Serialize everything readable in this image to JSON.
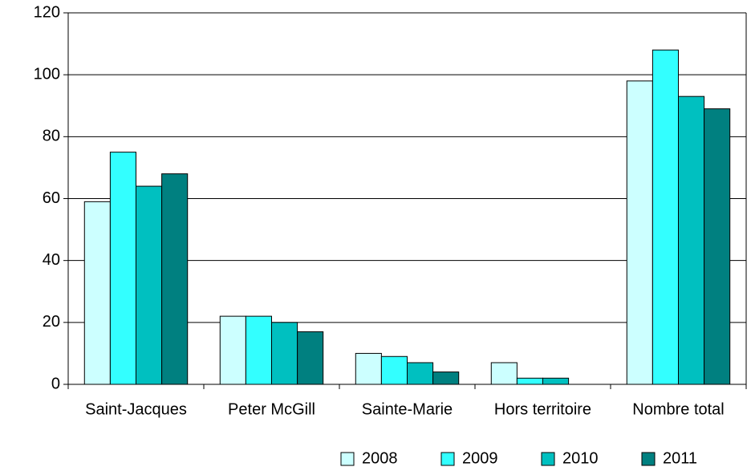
{
  "chart_data": {
    "type": "bar",
    "categories": [
      "Saint-Jacques",
      "Peter McGill",
      "Sainte-Marie",
      "Hors territoire",
      "Nombre total"
    ],
    "series": [
      {
        "name": "2008",
        "color": "#ccffff",
        "values": [
          59,
          22,
          10,
          7,
          98
        ]
      },
      {
        "name": "2009",
        "color": "#33ffff",
        "values": [
          75,
          22,
          9,
          2,
          108
        ]
      },
      {
        "name": "2010",
        "color": "#00c0c0",
        "values": [
          64,
          20,
          7,
          2,
          93
        ]
      },
      {
        "name": "2011",
        "color": "#008080",
        "values": [
          68,
          17,
          4,
          0,
          89
        ]
      }
    ],
    "ylim": [
      0,
      120
    ],
    "yticks": [
      0,
      20,
      40,
      60,
      80,
      100,
      120
    ],
    "grid": true,
    "legend": "bottom"
  }
}
